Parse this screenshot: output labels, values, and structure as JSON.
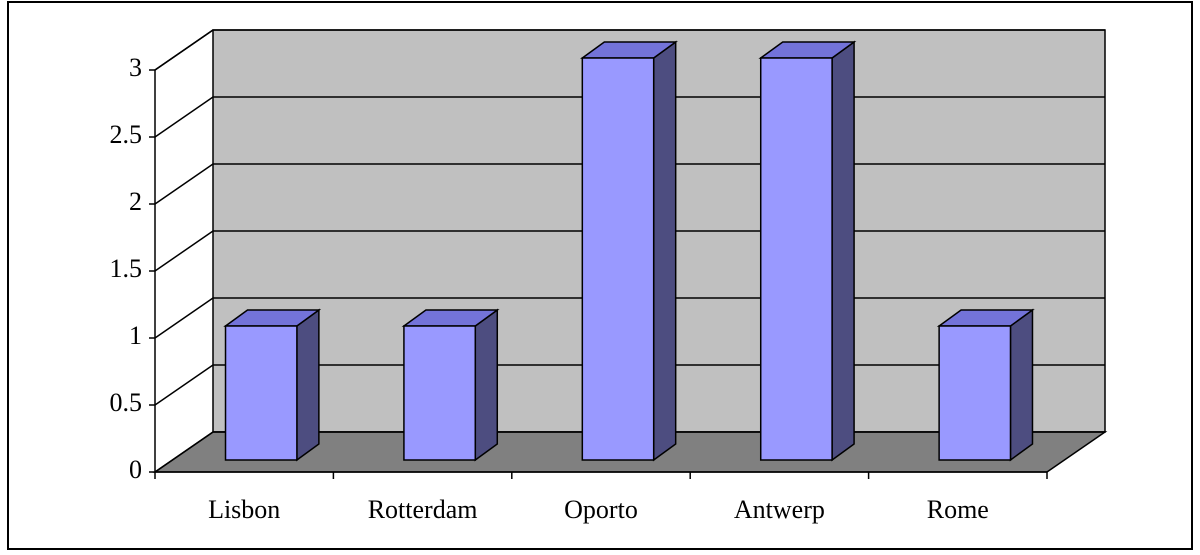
{
  "chart_data": {
    "type": "bar3d",
    "categories": [
      "Lisbon",
      "Rotterdam",
      "Oporto",
      "Antwerp",
      "Rome"
    ],
    "values": [
      1,
      1,
      3,
      3,
      1
    ],
    "color": "#9999ff",
    "ylim": [
      0,
      3
    ],
    "yticks": [
      0,
      0.5,
      1,
      1.5,
      2,
      2.5,
      3
    ],
    "grid": true
  }
}
